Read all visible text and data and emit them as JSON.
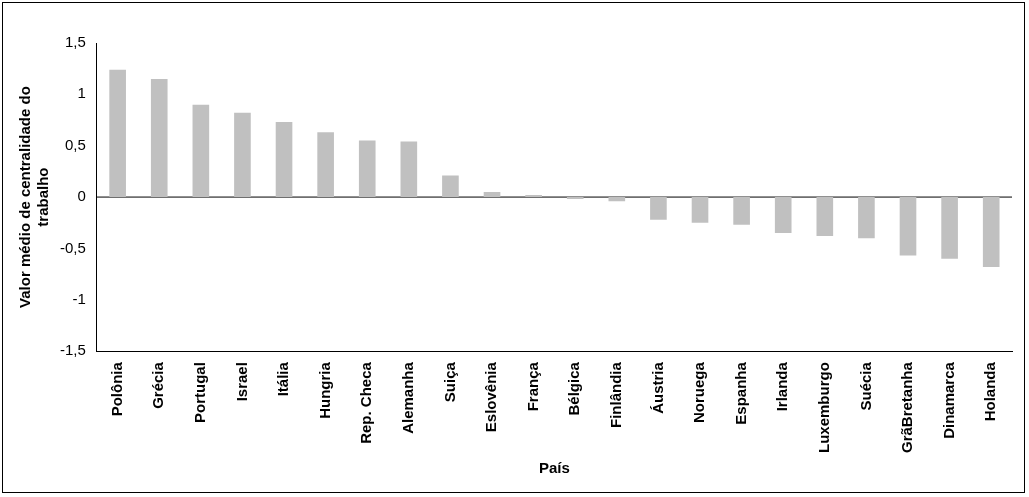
{
  "chart_data": {
    "type": "bar",
    "xlabel": "País",
    "ylabel": "Valor médio de centralidade do trabalho",
    "categories": [
      "Polônia",
      "Grécia",
      "Portugal",
      "Israel",
      "Itália",
      "Hungria",
      "Rep. Checa",
      "Alemanha",
      "Suiça",
      "Eslovênia",
      "França",
      "Bélgica",
      "Finlândia",
      "Áustria",
      "Noruega",
      "Espanha",
      "Irlanda",
      "Luxemburgo",
      "Suécia",
      "GrãBretanha",
      "Dinamarca",
      "Holanda"
    ],
    "values": [
      1.24,
      1.15,
      0.9,
      0.82,
      0.73,
      0.63,
      0.55,
      0.54,
      0.21,
      0.05,
      0.02,
      -0.02,
      -0.04,
      -0.22,
      -0.25,
      -0.27,
      -0.35,
      -0.38,
      -0.4,
      -0.57,
      -0.6,
      -0.68
    ],
    "color": "#c0c0c0",
    "ylim": [
      -1.5,
      1.5
    ],
    "yticks": [
      {
        "value": -1.5,
        "label": "-1,5"
      },
      -1,
      {
        "value": -0.5,
        "label": "-0,5"
      },
      0,
      {
        "value": 0.5,
        "label": "0,5"
      },
      1,
      {
        "value": 1.5,
        "label": "1,5"
      }
    ],
    "ref_lines": [
      {
        "axis": "y",
        "value": 0,
        "color": "#000000"
      }
    ],
    "grid": false,
    "legend": false
  }
}
